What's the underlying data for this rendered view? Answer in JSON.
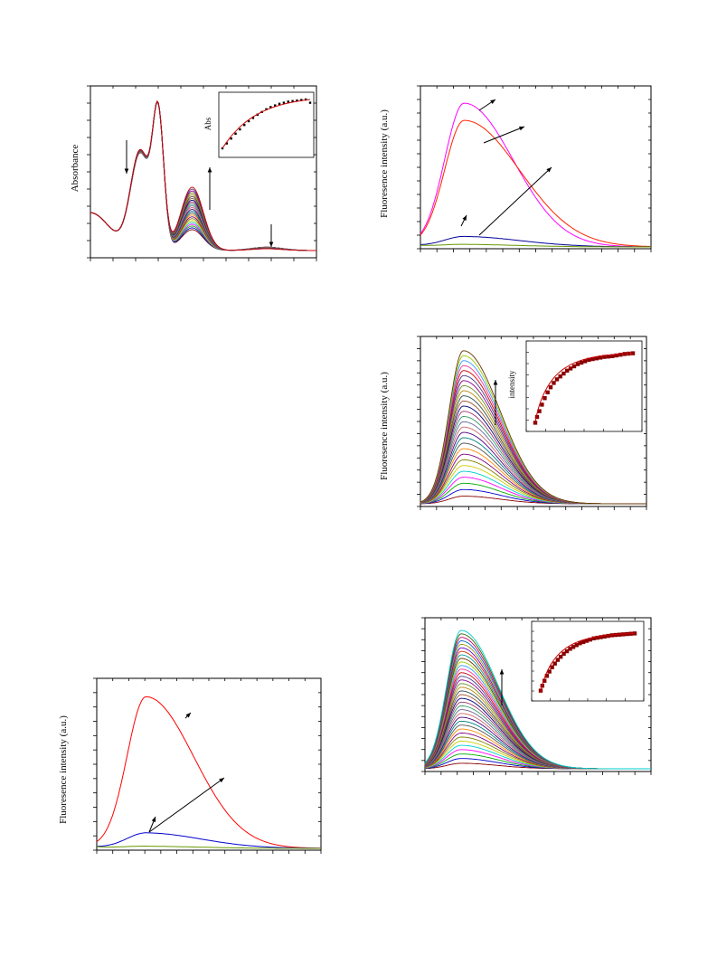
{
  "chart_data": [
    {
      "id": "absorbance",
      "type": "line",
      "title": "",
      "xlabel": "",
      "ylabel": "Absorbance",
      "grid": false,
      "series_colors": [
        "#8b0000",
        "#0000cc",
        "#00aa00",
        "#ff00ff",
        "#00cccc",
        "#cccc00",
        "#808000",
        "#800080",
        "#ff8800",
        "#555555",
        "#008080",
        "#4b0082",
        "#cc6666",
        "#666699",
        "#339966",
        "#993366",
        "#000080",
        "#a0522d",
        "#2f4f4f",
        "#b8860b",
        "#6b8e23",
        "#8b008b",
        "#483d8b",
        "#cc0000"
      ],
      "curve_count": 24,
      "band_decrease_1": [
        0.9,
        0.93
      ],
      "band_isosbestic": [
        1.0,
        1.0
      ],
      "band_increase": [
        0.22,
        0.67
      ],
      "band_decrease_2": [
        0.04,
        0.02
      ],
      "inset": {
        "ylabel": "Abs",
        "points_y": [
          0.1,
          0.19,
          0.28,
          0.37,
          0.45,
          0.53,
          0.6,
          0.66,
          0.72,
          0.77,
          0.82,
          0.86,
          0.89,
          0.92,
          0.94,
          0.96,
          0.97,
          0.98,
          0.99,
          1.0,
          0.94
        ],
        "fit_color": "#cc0000",
        "marker_color": "#000000"
      }
    },
    {
      "id": "fluor-top-right",
      "type": "line",
      "title": "",
      "xlabel": "",
      "ylabel": "Fluoresence intensity (a.u.)",
      "grid": false,
      "series": [
        {
          "color": "#ff00ff",
          "peak": 1.0,
          "tail": 0.3
        },
        {
          "color": "#ff2200",
          "peak": 0.88,
          "tail": 0.34
        },
        {
          "color": "#000099",
          "peak": 0.07,
          "tail": 0.35
        },
        {
          "color": "#669900",
          "peak": 0.015,
          "tail": 0.35
        }
      ]
    },
    {
      "id": "fluor-mid-right",
      "type": "line",
      "title": "",
      "xlabel": "",
      "ylabel": "Fluoresence intensity (a.u.)",
      "grid": false,
      "curve_count": 28,
      "inset": {
        "ylabel": "intensity",
        "points_y": [
          0.02,
          0.1,
          0.18,
          0.27,
          0.36,
          0.44,
          0.51,
          0.57,
          0.62,
          0.66,
          0.7,
          0.74,
          0.77,
          0.8,
          0.83,
          0.85,
          0.87,
          0.89,
          0.9,
          0.91,
          0.92,
          0.93,
          0.935,
          0.94,
          0.95,
          0.96,
          0.97,
          0.975,
          0.98
        ],
        "fit_color": "#cc0000",
        "marker_color": "#8b0000"
      }
    },
    {
      "id": "fluor-bottom-left",
      "type": "line",
      "title": "",
      "xlabel": "",
      "ylabel": "Fluoresence intensity (a.u.)",
      "grid": false,
      "series": [
        {
          "color": "#ff0000",
          "peak": 1.0,
          "tail": 0.3
        },
        {
          "color": "#0000cc",
          "peak": 0.1,
          "tail": 0.35
        },
        {
          "color": "#669900",
          "peak": 0.012,
          "tail": 0.35
        }
      ]
    },
    {
      "id": "fluor-bottom-right",
      "type": "line",
      "title": "",
      "xlabel": "",
      "ylabel": "",
      "grid": false,
      "curve_count": 36,
      "inset": {
        "ylabel": "",
        "points_y": [
          0.05,
          0.13,
          0.21,
          0.29,
          0.36,
          0.43,
          0.49,
          0.55,
          0.6,
          0.65,
          0.69,
          0.73,
          0.76,
          0.79,
          0.82,
          0.84,
          0.86,
          0.88,
          0.9,
          0.91,
          0.92,
          0.93,
          0.94,
          0.95,
          0.955,
          0.96,
          0.965,
          0.97,
          0.975,
          0.98
        ],
        "fit_color": "#cc0000",
        "marker_color": "#8b0000"
      }
    }
  ]
}
